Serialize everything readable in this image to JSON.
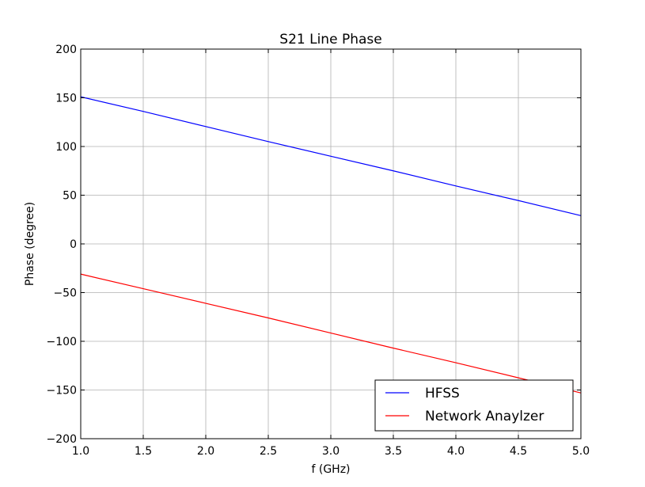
{
  "chart_data": {
    "type": "line",
    "title": "S21 Line Phase",
    "xlabel": "f (GHz)",
    "ylabel": "Phase (degree)",
    "xlim": [
      1.0,
      5.0
    ],
    "ylim": [
      -200,
      200
    ],
    "xticks": [
      1.0,
      1.5,
      2.0,
      2.5,
      3.0,
      3.5,
      4.0,
      4.5,
      5.0
    ],
    "xtick_labels": [
      "1.0",
      "1.5",
      "2.0",
      "2.5",
      "3.0",
      "3.5",
      "4.0",
      "4.5",
      "5.0"
    ],
    "yticks": [
      200,
      150,
      100,
      50,
      0,
      -50,
      -100,
      -150,
      -200
    ],
    "ytick_labels": [
      "200",
      "150",
      "100",
      "50",
      "0",
      "−50",
      "−100",
      "−150",
      "−200"
    ],
    "grid": true,
    "legend_position": "bottom-right",
    "series": [
      {
        "name": "HFSS",
        "color": "#0000ff",
        "x": [
          1.0,
          1.5,
          2.0,
          2.5,
          3.0,
          3.5,
          4.0,
          4.5,
          5.0
        ],
        "y": [
          151,
          136,
          120.5,
          105,
          90,
          75,
          59.5,
          44.5,
          29
        ]
      },
      {
        "name": "Network Anaylzer",
        "color": "#ff0000",
        "x": [
          1.0,
          1.5,
          2.0,
          2.5,
          3.0,
          3.5,
          4.0,
          4.5,
          5.0
        ],
        "y": [
          -31,
          -46,
          -61,
          -76,
          -91.5,
          -107,
          -122,
          -137.5,
          -153
        ]
      }
    ]
  }
}
